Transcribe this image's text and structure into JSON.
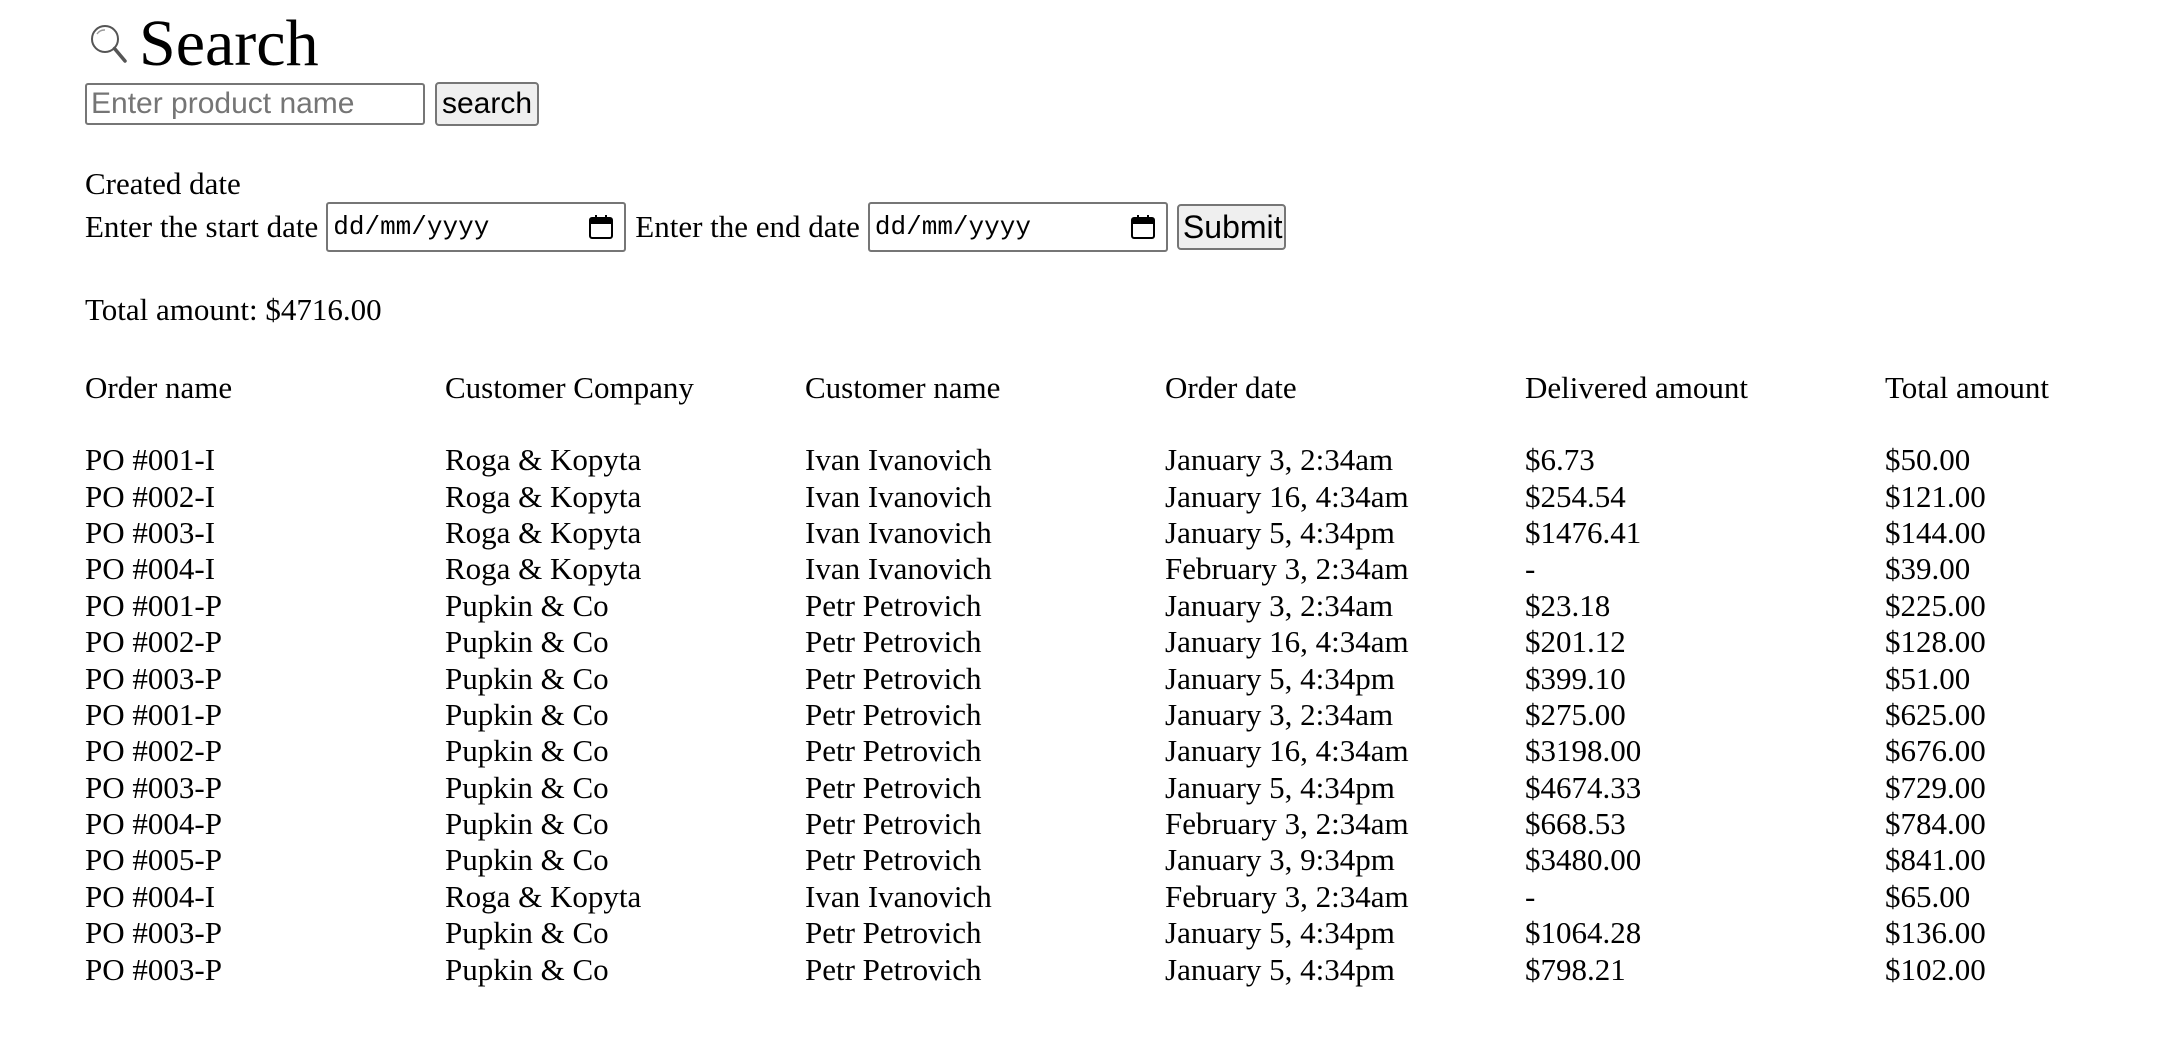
{
  "header": {
    "title": "Search",
    "icon": "search-icon"
  },
  "search": {
    "placeholder": "Enter product name",
    "value": "",
    "button_label": "search"
  },
  "date_filter": {
    "section_label": "Created date",
    "start_label": "Enter the start date",
    "start_placeholder": "dd/mm/yyyy",
    "end_label": "Enter the end date",
    "end_placeholder": "dd/mm/yyyy",
    "submit_label": "Submit",
    "calendar_icon": "calendar-icon"
  },
  "summary": {
    "total_text": "Total amount: $4716.00"
  },
  "table": {
    "columns": [
      "Order name",
      "Customer Company",
      "Customer name",
      "Order date",
      "Delivered amount",
      "Total amount"
    ],
    "rows": [
      [
        "PO #001-I",
        "Roga & Kopyta",
        "Ivan Ivanovich",
        "January 3, 2:34am",
        "$6.73",
        "$50.00"
      ],
      [
        "PO #002-I",
        "Roga & Kopyta",
        "Ivan Ivanovich",
        "January 16, 4:34am",
        "$254.54",
        "$121.00"
      ],
      [
        "PO #003-I",
        "Roga & Kopyta",
        "Ivan Ivanovich",
        "January 5, 4:34pm",
        "$1476.41",
        "$144.00"
      ],
      [
        "PO #004-I",
        "Roga & Kopyta",
        "Ivan Ivanovich",
        "February 3, 2:34am",
        "-",
        "$39.00"
      ],
      [
        "PO #001-P",
        "Pupkin & Co",
        "Petr Petrovich",
        "January 3, 2:34am",
        "$23.18",
        "$225.00"
      ],
      [
        "PO #002-P",
        "Pupkin & Co",
        "Petr Petrovich",
        "January 16, 4:34am",
        "$201.12",
        "$128.00"
      ],
      [
        "PO #003-P",
        "Pupkin & Co",
        "Petr Petrovich",
        "January 5, 4:34pm",
        "$399.10",
        "$51.00"
      ],
      [
        "PO #001-P",
        "Pupkin & Co",
        "Petr Petrovich",
        "January 3, 2:34am",
        "$275.00",
        "$625.00"
      ],
      [
        "PO #002-P",
        "Pupkin & Co",
        "Petr Petrovich",
        "January 16, 4:34am",
        "$3198.00",
        "$676.00"
      ],
      [
        "PO #003-P",
        "Pupkin & Co",
        "Petr Petrovich",
        "January 5, 4:34pm",
        "$4674.33",
        "$729.00"
      ],
      [
        "PO #004-P",
        "Pupkin & Co",
        "Petr Petrovich",
        "February 3, 2:34am",
        "$668.53",
        "$784.00"
      ],
      [
        "PO #005-P",
        "Pupkin & Co",
        "Petr Petrovich",
        "January 3, 9:34pm",
        "$3480.00",
        "$841.00"
      ],
      [
        "PO #004-I",
        "Roga & Kopyta",
        "Ivan Ivanovich",
        "February 3, 2:34am",
        "-",
        "$65.00"
      ],
      [
        "PO #003-P",
        "Pupkin & Co",
        "Petr Petrovich",
        "January 5, 4:34pm",
        "$1064.28",
        "$136.00"
      ],
      [
        "PO #003-P",
        "Pupkin & Co",
        "Petr Petrovich",
        "January 5, 4:34pm",
        "$798.21",
        "$102.00"
      ]
    ]
  }
}
